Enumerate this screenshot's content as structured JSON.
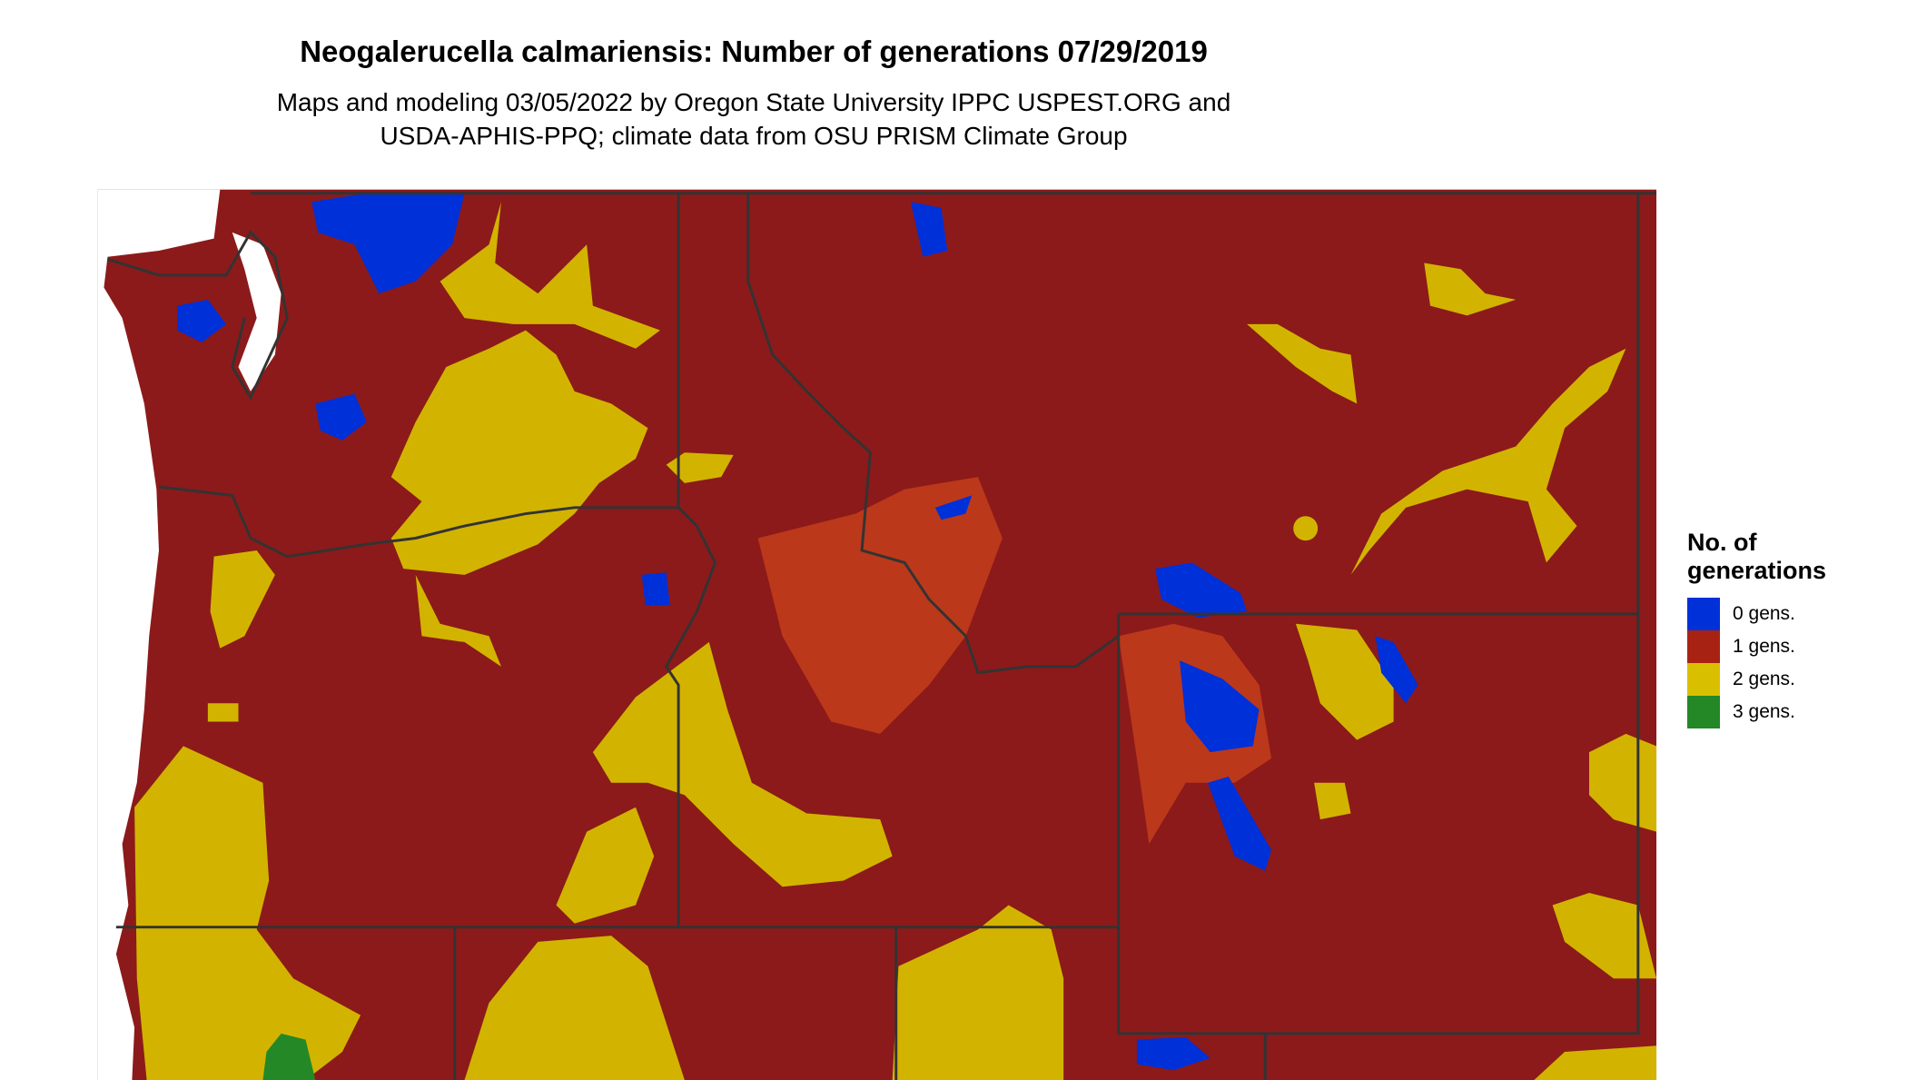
{
  "title": "Neogalerucella calmariensis: Number of generations 07/29/2019",
  "subtitle_lines": [
    "Maps and modeling 03/05/2022 by Oregon State University IPPC USPEST.ORG and",
    "USDA-APHIS-PPQ; climate data from OSU PRISM Climate Group"
  ],
  "legend": {
    "title_lines": [
      "No. of",
      "generations"
    ],
    "items": [
      {
        "label": "0 gens.",
        "color": "#0030d8"
      },
      {
        "label": "1 gens.",
        "color": "#a82214"
      },
      {
        "label": "2 gens.",
        "color": "#d8c000"
      },
      {
        "label": "3 gens.",
        "color": "#248826"
      }
    ]
  },
  "map": {
    "background_class_color": "#8c1a1a",
    "boundary_color": "#333333",
    "region": "Pacific Northwest / Northern Rockies (WA, OR, ID, MT, WY, northern CA/NV/UT)"
  }
}
